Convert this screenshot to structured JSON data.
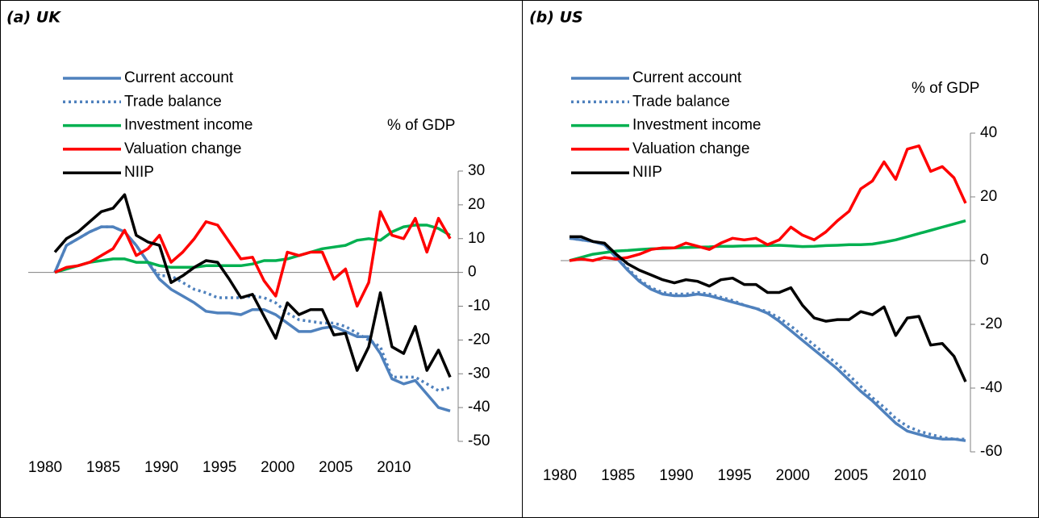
{
  "chart_data": [
    {
      "type": "line",
      "title": "(a) UK",
      "y_label": "% of GDP",
      "x": [
        1980,
        1981,
        1982,
        1983,
        1984,
        1985,
        1986,
        1987,
        1988,
        1989,
        1990,
        1991,
        1992,
        1993,
        1994,
        1995,
        1996,
        1997,
        1998,
        1999,
        2000,
        2001,
        2002,
        2003,
        2004,
        2005,
        2006,
        2007,
        2008,
        2009,
        2010,
        2011,
        2012,
        2013,
        2014
      ],
      "xlim": [
        1980,
        2014
      ],
      "xticks": [
        1980,
        1985,
        1990,
        1995,
        2000,
        2005,
        2010
      ],
      "ylim": [
        -50,
        30
      ],
      "yticks": [
        30,
        20,
        10,
        0,
        -10,
        -20,
        -30,
        -40,
        -50
      ],
      "series": [
        {
          "name": "Current account",
          "color": "#4f81bd",
          "dash": "solid",
          "values": [
            0,
            8,
            10,
            12,
            13.5,
            13.5,
            12,
            8,
            3,
            -2,
            -5,
            -7,
            -9,
            -11.5,
            -12,
            -12,
            -12.5,
            -11,
            -11,
            -12.5,
            -15,
            -17.5,
            -17.5,
            -16.5,
            -16,
            -17.5,
            -19,
            -19,
            -24,
            -31.5,
            -33,
            -32,
            -36,
            -40,
            -41
          ]
        },
        {
          "name": "Trade balance",
          "color": "#4f81bd",
          "dash": "dotted",
          "values": [
            0,
            8,
            10,
            12,
            13.5,
            13.5,
            12,
            8,
            3,
            -1,
            -1,
            -3,
            -5,
            -6,
            -7.5,
            -7.5,
            -7.5,
            -7,
            -7.5,
            -9,
            -12,
            -14,
            -14.5,
            -15,
            -15,
            -16,
            -18,
            -20,
            -22,
            -31,
            -31,
            -31,
            -33,
            -35,
            -34
          ]
        },
        {
          "name": "Investment income",
          "color": "#00b050",
          "dash": "solid",
          "values": [
            0,
            1,
            2,
            3,
            3.5,
            4,
            4,
            3,
            3,
            2,
            1.5,
            1.5,
            1.5,
            2,
            2,
            2,
            2,
            2.5,
            3.5,
            3.5,
            4,
            5,
            6,
            7,
            7.5,
            8,
            9.5,
            10,
            9.5,
            12,
            13.5,
            14,
            14,
            13,
            11
          ]
        },
        {
          "name": "Valuation change",
          "color": "#ff0000",
          "dash": "solid",
          "values": [
            0,
            1.5,
            2,
            3,
            5,
            7,
            12.5,
            5,
            7,
            11,
            3,
            6,
            10,
            15,
            14,
            9,
            4,
            4.5,
            -2.5,
            -7,
            6,
            5,
            6,
            6,
            -2,
            1,
            -10,
            -3,
            18,
            11,
            10,
            16,
            6,
            16,
            10
          ]
        },
        {
          "name": "NIIP",
          "color": "#000000",
          "dash": "solid",
          "values": [
            6,
            10,
            12,
            15,
            18,
            19,
            23,
            11,
            9,
            8,
            -3,
            -1,
            1.5,
            3.5,
            3,
            -2,
            -7.5,
            -6.5,
            -13,
            -19.5,
            -9,
            -12.5,
            -11,
            -11,
            -18.5,
            -18,
            -29,
            -22,
            -6,
            -22,
            -24,
            -16,
            -29,
            -23,
            -31
          ]
        }
      ]
    },
    {
      "type": "line",
      "title": "(b) US",
      "y_label": "% of GDP",
      "x": [
        1980,
        1981,
        1982,
        1983,
        1984,
        1985,
        1986,
        1987,
        1988,
        1989,
        1990,
        1991,
        1992,
        1993,
        1994,
        1995,
        1996,
        1997,
        1998,
        1999,
        2000,
        2001,
        2002,
        2003,
        2004,
        2005,
        2006,
        2007,
        2008,
        2009,
        2010,
        2011,
        2012,
        2013,
        2014
      ],
      "xlim": [
        1980,
        2014
      ],
      "xticks": [
        1980,
        1985,
        1990,
        1995,
        2000,
        2005,
        2010
      ],
      "ylim": [
        -60,
        40
      ],
      "yticks": [
        40,
        20,
        0,
        -20,
        -40,
        -60
      ],
      "series": [
        {
          "name": "Current account",
          "color": "#4f81bd",
          "dash": "solid",
          "values": [
            7,
            6.5,
            6,
            5,
            1,
            -3,
            -6.5,
            -9,
            -10.5,
            -11,
            -11,
            -10.5,
            -11,
            -12,
            -13,
            -14,
            -15,
            -16.5,
            -19,
            -22,
            -25,
            -28,
            -31,
            -34,
            -37.5,
            -41,
            -44,
            -47.5,
            -51,
            -53.5,
            -54.5,
            -55.5,
            -56,
            -56,
            -56.5
          ]
        },
        {
          "name": "Trade balance",
          "color": "#4f81bd",
          "dash": "dotted",
          "values": [
            7,
            6.5,
            6,
            5,
            1,
            -2.5,
            -6,
            -8.5,
            -10,
            -10.5,
            -10.5,
            -10,
            -10.5,
            -11.5,
            -12.5,
            -14,
            -15,
            -16,
            -18,
            -20.5,
            -23.5,
            -26.5,
            -29.5,
            -32.5,
            -36,
            -39.5,
            -43,
            -46,
            -49.5,
            -52,
            -53.5,
            -54.5,
            -55.5,
            -56,
            -56
          ]
        },
        {
          "name": "Investment income",
          "color": "#00b050",
          "dash": "solid",
          "values": [
            0,
            1,
            2,
            2.5,
            3,
            3.2,
            3.5,
            3.7,
            3.8,
            4,
            4.1,
            4.2,
            4.3,
            4.5,
            4.5,
            4.6,
            4.6,
            4.7,
            4.8,
            4.6,
            4.4,
            4.5,
            4.7,
            4.8,
            5,
            5,
            5.2,
            5.8,
            6.5,
            7.5,
            8.5,
            9.5,
            10.5,
            11.5,
            12.5
          ]
        },
        {
          "name": "Valuation change",
          "color": "#ff0000",
          "dash": "solid",
          "values": [
            0,
            0.5,
            0,
            1,
            0.5,
            1,
            2,
            3.5,
            4,
            4,
            5.5,
            4.5,
            3.5,
            5.5,
            7,
            6.5,
            7,
            5,
            6.5,
            10.5,
            8,
            6.5,
            9,
            12.5,
            15.5,
            22.5,
            25,
            31,
            25.5,
            35,
            36,
            28,
            29.5,
            26,
            18
          ]
        },
        {
          "name": "NIIP",
          "color": "#000000",
          "dash": "solid",
          "values": [
            7.5,
            7.5,
            6,
            5.5,
            2,
            -1,
            -3,
            -4.5,
            -6,
            -7,
            -6,
            -6.5,
            -8,
            -6,
            -5.5,
            -7.5,
            -7.5,
            -10,
            -10,
            -8.5,
            -14,
            -18,
            -19,
            -18.5,
            -18.5,
            -16,
            -17,
            -14.5,
            -23.5,
            -18,
            -17.5,
            -26.5,
            -26,
            -30,
            -38
          ]
        }
      ]
    }
  ]
}
